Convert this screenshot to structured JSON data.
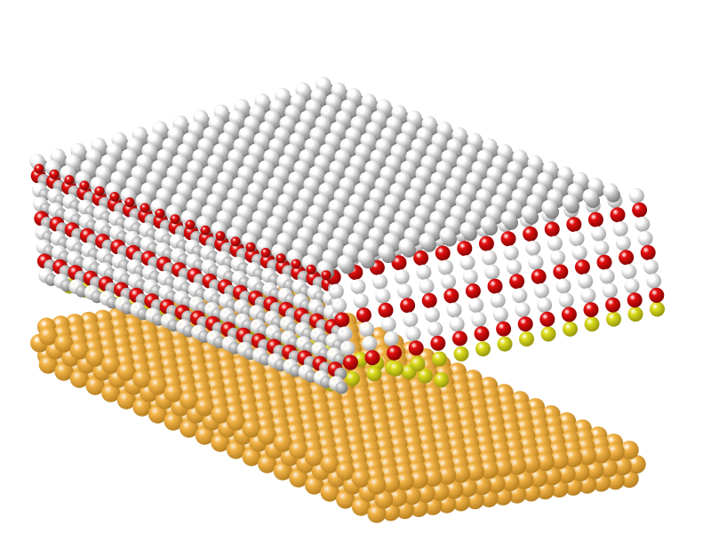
{
  "scene": {
    "subject": "molecular-model",
    "view": "isometric",
    "background_color": "#ffffff",
    "colors": {
      "gold_atom": "#f4b548",
      "gold_atom_shadow": "#b07a1c",
      "sulfur_atom": "#dede1e",
      "sulfur_atom_shadow": "#8f8f0c",
      "carbon_atom": "#c8c8c8",
      "carbon_atom_shadow": "#707070",
      "oxygen_atom": "#e61010",
      "oxygen_atom_shadow": "#7a0000",
      "hydrogen_atom": "#ffffff",
      "hydrogen_atom_shadow": "#9a9a9a"
    },
    "layers": [
      {
        "name": "gold-substrate",
        "atom": "gold_atom",
        "count": 3
      },
      {
        "name": "sulfur-headgroups",
        "atom": "sulfur_atom",
        "count": 1
      },
      {
        "name": "alkyl-chains",
        "atom": "carbon_atom",
        "count": 1
      },
      {
        "name": "hydroxyl-terminal-groups",
        "atom": "oxygen_atom",
        "count": 1
      }
    ]
  }
}
